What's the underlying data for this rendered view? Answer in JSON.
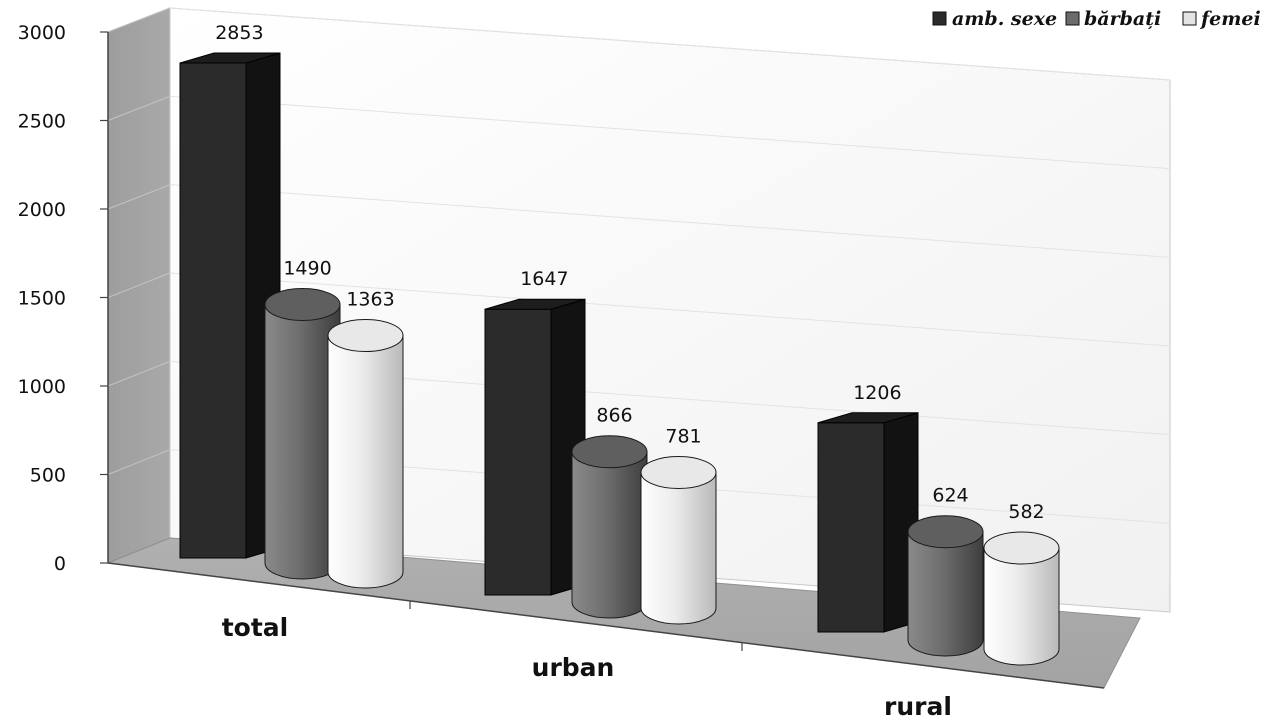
{
  "chart_data": {
    "type": "bar",
    "title": "",
    "xlabel": "",
    "ylabel": "",
    "categories": [
      "total",
      "urban",
      "rural"
    ],
    "series": [
      {
        "name": "amb. sexe",
        "values": [
          2853,
          1647,
          1206
        ]
      },
      {
        "name": "bărbați",
        "values": [
          1490,
          866,
          624
        ]
      },
      {
        "name": "femei",
        "values": [
          1363,
          781,
          582
        ]
      }
    ],
    "ylim": [
      0,
      3000
    ],
    "yticks": [
      "0",
      "500",
      "1000",
      "1500",
      "2000",
      "2500",
      "3000"
    ],
    "grid": true,
    "legend": "top-right",
    "colors": {
      "amb. sexe": "#2b2b2b",
      "bărbați": "#6b6b6b",
      "femei": "#e4e4e4"
    }
  }
}
